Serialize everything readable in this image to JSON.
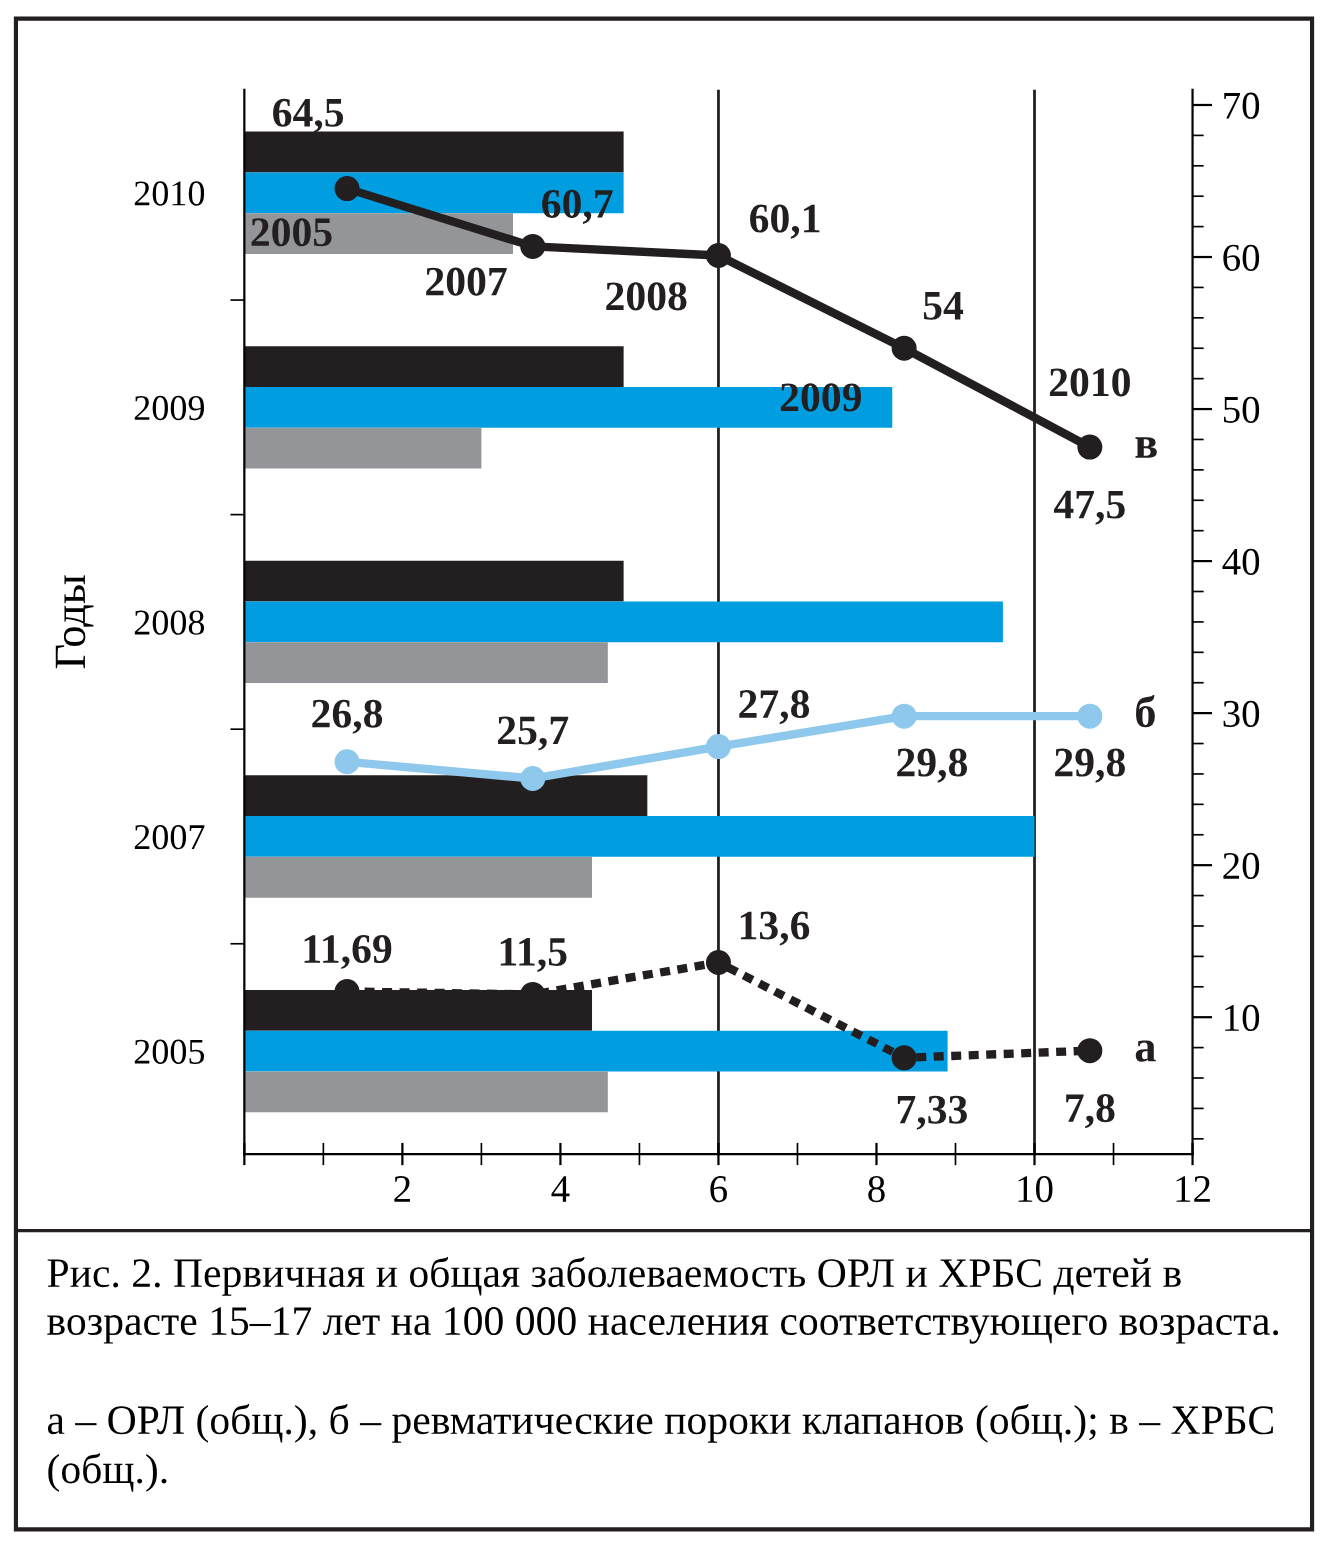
{
  "chart_data": [
    {
      "type": "bar",
      "orientation": "horizontal",
      "ylabel": "Годы",
      "categories": [
        "2010",
        "2009",
        "2008",
        "2007",
        "2005"
      ],
      "series": [
        {
          "color": "#231f20",
          "values": [
            4.8,
            4.8,
            4.8,
            5.1,
            4.4
          ]
        },
        {
          "color": "#009ee0",
          "values": [
            4.8,
            8.2,
            9.6,
            10.0,
            8.9
          ]
        },
        {
          "color": "#939598",
          "values": [
            3.4,
            3.0,
            4.6,
            4.4,
            4.6
          ]
        }
      ],
      "xlim": [
        0,
        12
      ],
      "xticks": [
        {
          "value": 0,
          "label": null
        },
        2,
        4,
        6,
        8,
        10,
        12
      ],
      "ref_lines": [
        {
          "axis": "x",
          "value": 6,
          "color": "#231f20"
        },
        {
          "axis": "x",
          "value": 10,
          "color": "#231f20"
        }
      ],
      "grid": false,
      "legend": false,
      "annotations": [
        "Рис. 2. Первичная и общая заболеваемость ОРЛ и ХРБС детей в возрасте 15–17 лет на 100 000 населения соответствующего возраста.",
        "а – ОРЛ (общ.), б – ревматические пороки клапанов (общ.); в – ХРБС (общ.)."
      ]
    },
    {
      "type": "line",
      "categories": [
        "2005",
        "2007",
        "2008",
        "2009",
        "2010"
      ],
      "series": [
        {
          "name": "а",
          "color": "#231f20",
          "line_style": "dotted",
          "marker": "circle",
          "values": [
            11.69,
            11.5,
            13.6,
            7.33,
            7.8
          ],
          "value_labels": [
            "11,69",
            "11,5",
            "13,6",
            "7,33",
            "7,8"
          ]
        },
        {
          "name": "б",
          "color": "#8ec8ec",
          "line_style": "solid",
          "marker": "circle",
          "values": [
            26.8,
            25.7,
            27.8,
            29.8,
            29.8
          ],
          "value_labels": [
            "26,8",
            "25,7",
            "27,8",
            "29,8",
            "29,8"
          ]
        },
        {
          "name": "в",
          "color": "#231f20",
          "line_style": "solid",
          "marker": "circle",
          "values": [
            64.5,
            60.7,
            60.1,
            54,
            47.5
          ],
          "value_labels": [
            "64,5",
            "60,7",
            "60,1",
            "54",
            "47,5"
          ]
        }
      ],
      "ylim": [
        1,
        71
      ],
      "yticks": [
        10,
        20,
        30,
        40,
        50,
        60,
        70
      ],
      "tick_labels": "y",
      "grid": false,
      "legend": "right"
    }
  ]
}
